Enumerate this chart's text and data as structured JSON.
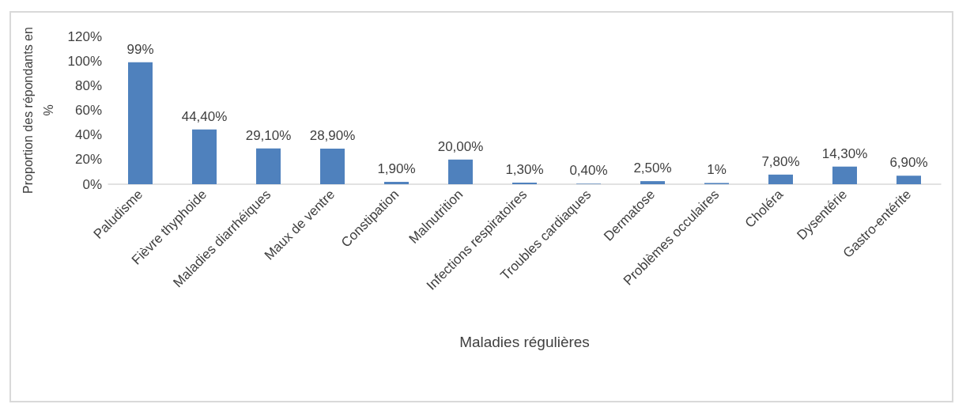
{
  "chart_data": {
    "type": "bar",
    "xlabel": "Maladies régulières",
    "ylabel": "Proportion des répondants en %",
    "categories": [
      "Paludisme",
      "Fièvre thyphoide",
      "Maladies diarrhéiques",
      "Maux de ventre",
      "Constipation",
      "Malnutrition",
      "Infections respiratoires",
      "Troubles cardiaques",
      "Dermatose",
      "Problèmes occulaires",
      "Choléra",
      "Dysentérie",
      "Gastro-entérite"
    ],
    "values": [
      99,
      44.4,
      29.1,
      28.9,
      1.9,
      20,
      1.3,
      0.4,
      2.5,
      1,
      7.8,
      14.3,
      6.9
    ],
    "value_labels": [
      "99%",
      "44,40%",
      "29,10%",
      "28,90%",
      "1,90%",
      "20,00%",
      "1,30%",
      "0,40%",
      "2,50%",
      "1%",
      "7,80%",
      "14,30%",
      "6,90%"
    ],
    "color": "#4f81bd",
    "ylim": [
      0,
      120
    ],
    "yticks": [
      {
        "value": 0,
        "label": "0%"
      },
      {
        "value": 20,
        "label": "20%"
      },
      {
        "value": 40,
        "label": "40%"
      },
      {
        "value": 60,
        "label": "60%"
      },
      {
        "value": 80,
        "label": "80%"
      },
      {
        "value": 100,
        "label": "100%"
      },
      {
        "value": 120,
        "label": "120%"
      }
    ],
    "grid": false
  }
}
